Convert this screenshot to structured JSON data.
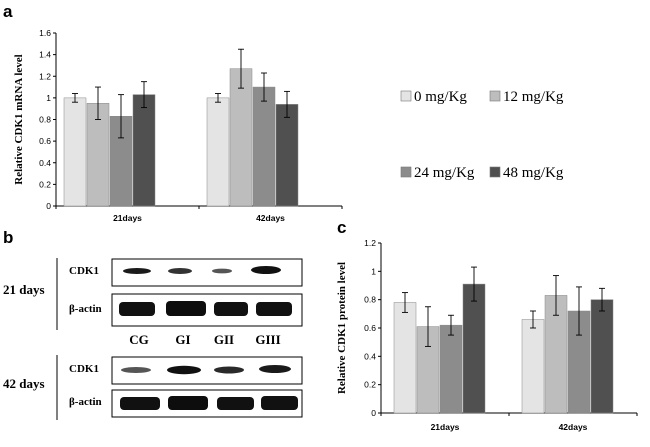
{
  "panels": {
    "a": "a",
    "b": "b",
    "c": "c"
  },
  "colors": {
    "s0": "#e4e4e4",
    "s12": "#bdbdbd",
    "s24": "#8c8c8c",
    "s48": "#505050"
  },
  "legend": [
    "0 mg/Kg",
    "12 mg/Kg",
    "24 mg/Kg",
    "48 mg/Kg"
  ],
  "chart_data": [
    {
      "type": "bar",
      "id": "a",
      "title": "",
      "xlabel": "",
      "ylabel": "Relative CDK1 mRNA level",
      "categories": [
        "21days",
        "42days"
      ],
      "ylim": [
        0,
        1.6
      ],
      "yticks": [
        0,
        0.2,
        0.4,
        0.6,
        0.8,
        1,
        1.2,
        1.4,
        1.6
      ],
      "ytick_labels": [
        "0",
        "0.2",
        "0.4",
        "0.6",
        "0.8",
        "1",
        "1.2",
        "1.4",
        "1.6"
      ],
      "series": [
        {
          "name": "0 mg/Kg",
          "values": [
            1.0,
            1.0
          ],
          "errors": [
            0.04,
            0.04
          ]
        },
        {
          "name": "12 mg/Kg",
          "values": [
            0.95,
            1.27
          ],
          "errors": [
            0.15,
            0.18
          ]
        },
        {
          "name": "24 mg/Kg",
          "values": [
            0.83,
            1.1
          ],
          "errors": [
            0.2,
            0.13
          ]
        },
        {
          "name": "48 mg/Kg",
          "values": [
            1.03,
            0.94
          ],
          "errors": [
            0.12,
            0.12
          ]
        }
      ]
    },
    {
      "type": "bar",
      "id": "c",
      "title": "",
      "xlabel": "",
      "ylabel": "Relative CDK1 protein level",
      "categories": [
        "21days",
        "42days"
      ],
      "ylim": [
        0,
        1.2
      ],
      "yticks": [
        0,
        0.2,
        0.4,
        0.6,
        0.8,
        1,
        1.2
      ],
      "ytick_labels": [
        "0",
        "0.2",
        "0.4",
        "0.6",
        "0.8",
        "1",
        "1.2"
      ],
      "series": [
        {
          "name": "0 mg/Kg",
          "values": [
            0.78,
            0.66
          ],
          "errors": [
            0.07,
            0.06
          ]
        },
        {
          "name": "12 mg/Kg",
          "values": [
            0.61,
            0.83
          ],
          "errors": [
            0.14,
            0.14
          ]
        },
        {
          "name": "24 mg/Kg",
          "values": [
            0.62,
            0.72
          ],
          "errors": [
            0.07,
            0.17
          ]
        },
        {
          "name": "48 mg/Kg",
          "values": [
            0.91,
            0.8
          ],
          "errors": [
            0.12,
            0.08
          ]
        }
      ]
    }
  ],
  "blot": {
    "groups": [
      {
        "label": "21 days",
        "rows": [
          "CDK1",
          "β-actin"
        ]
      },
      {
        "label": "42 days",
        "rows": [
          "CDK1",
          "β-actin"
        ]
      }
    ],
    "lanes": [
      "CG",
      "GI",
      "GII",
      "GIII"
    ]
  }
}
